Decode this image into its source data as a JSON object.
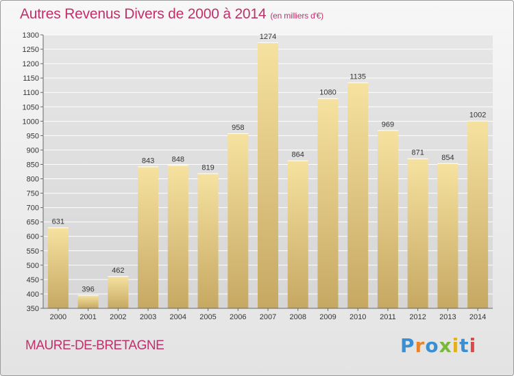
{
  "header": {
    "title": "Autres Revenus Divers de 2000 à 2014",
    "subtitle": "(en milliers d'€)"
  },
  "footer": {
    "location": "MAURE-DE-BRETAGNE",
    "brand": "Proxiti"
  },
  "colors": {
    "title": "#c0306a",
    "bar_top": "#f6e2a0",
    "bar_bottom": "#c6a862",
    "grid": "#ffffff"
  },
  "chart_data": {
    "type": "bar",
    "title": "Autres Revenus Divers de 2000 à 2014",
    "subtitle": "(en milliers d'€)",
    "categories": [
      "2000",
      "2001",
      "2002",
      "2003",
      "2004",
      "2005",
      "2006",
      "2007",
      "2008",
      "2009",
      "2010",
      "2011",
      "2012",
      "2013",
      "2014"
    ],
    "values": [
      631,
      396,
      462,
      843,
      848,
      819,
      958,
      1274,
      864,
      1080,
      1135,
      969,
      871,
      854,
      1002
    ],
    "ylim": [
      350,
      1300
    ],
    "yticks": [
      350,
      400,
      450,
      500,
      550,
      600,
      650,
      700,
      750,
      800,
      850,
      900,
      950,
      1000,
      1050,
      1100,
      1150,
      1200,
      1250,
      1300
    ],
    "grid": true,
    "legend": "none",
    "data_labels": true
  }
}
